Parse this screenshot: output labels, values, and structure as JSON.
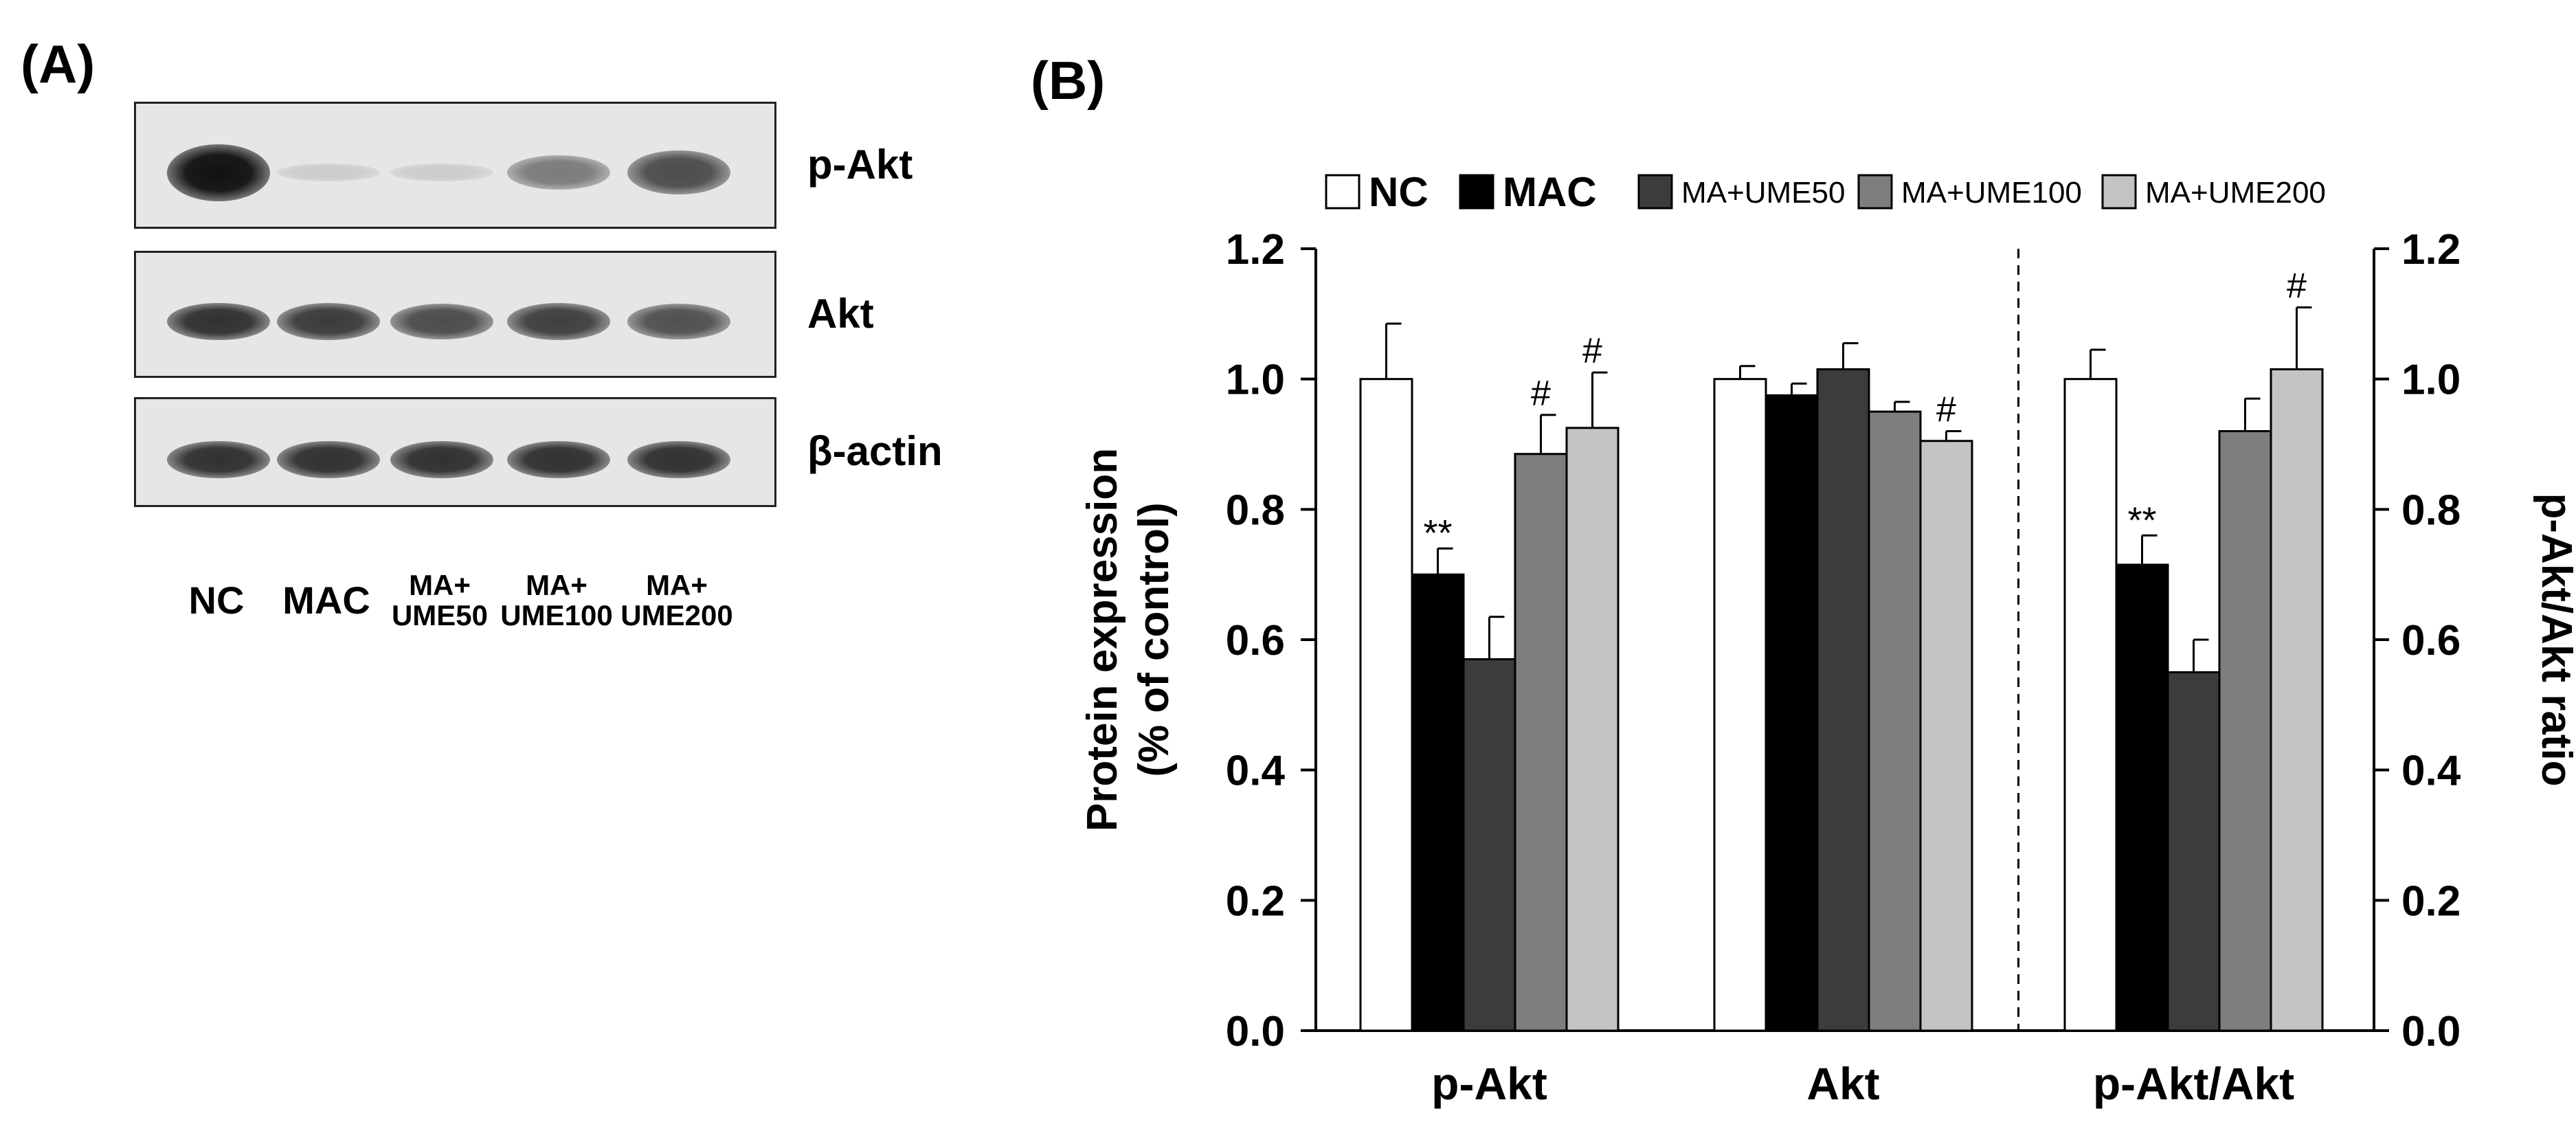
{
  "panel_a": {
    "letter": "(A)",
    "blots": [
      {
        "name": "p-Akt",
        "intensities": [
          1.0,
          0.12,
          0.12,
          0.5,
          0.72
        ]
      },
      {
        "name": "Akt",
        "intensities": [
          0.85,
          0.8,
          0.72,
          0.78,
          0.7
        ]
      },
      {
        "name": "β-actin",
        "intensities": [
          0.85,
          0.85,
          0.85,
          0.85,
          0.85
        ]
      }
    ],
    "lanes": [
      {
        "line1": "NC",
        "line2": ""
      },
      {
        "line1": "MAC",
        "line2": ""
      },
      {
        "line1": "MA+",
        "line2": "UME50"
      },
      {
        "line1": "MA+",
        "line2": "UME100"
      },
      {
        "line1": "MA+",
        "line2": "UME200"
      }
    ]
  },
  "panel_b": {
    "letter": "(B)"
  },
  "chart_data": {
    "type": "bar",
    "title": "",
    "categories": [
      "p-Akt",
      "Akt",
      "p-Akt/Akt"
    ],
    "series": [
      {
        "name": "NC",
        "color": "#ffffff",
        "values": [
          1.0,
          1.0,
          1.0
        ],
        "errors": [
          0.085,
          0.02,
          0.045
        ],
        "annotations": [
          "",
          "",
          ""
        ]
      },
      {
        "name": "MAC",
        "color": "#000000",
        "values": [
          0.7,
          0.975,
          0.715
        ],
        "errors": [
          0.04,
          0.018,
          0.045
        ],
        "annotations": [
          "**",
          "",
          "**"
        ]
      },
      {
        "name": "MA+UME50",
        "color": "#3c3c3c",
        "values": [
          0.57,
          1.015,
          0.55
        ],
        "errors": [
          0.065,
          0.04,
          0.05
        ],
        "annotations": [
          "",
          "",
          ""
        ]
      },
      {
        "name": "MA+UME100",
        "color": "#7e7e7e",
        "values": [
          0.885,
          0.95,
          0.92
        ],
        "errors": [
          0.06,
          0.015,
          0.05
        ],
        "annotations": [
          "#",
          "",
          ""
        ]
      },
      {
        "name": "MA+UME200",
        "color": "#c4c4c4",
        "values": [
          0.925,
          0.905,
          1.015
        ],
        "errors": [
          0.085,
          0.015,
          0.095
        ],
        "annotations": [
          "#",
          "#",
          "#"
        ]
      }
    ],
    "ylabel_left_line1": "Protein expression",
    "ylabel_left_line2": "(% of control)",
    "ylabel_right": "p-Akt/Akt ratio",
    "ylim": [
      0,
      1.2
    ],
    "yticks": [
      "0.0",
      "0.2",
      "0.4",
      "0.6",
      "0.8",
      "1.0",
      "1.2"
    ],
    "divider_after_category": "Akt",
    "legend_position": "top"
  }
}
